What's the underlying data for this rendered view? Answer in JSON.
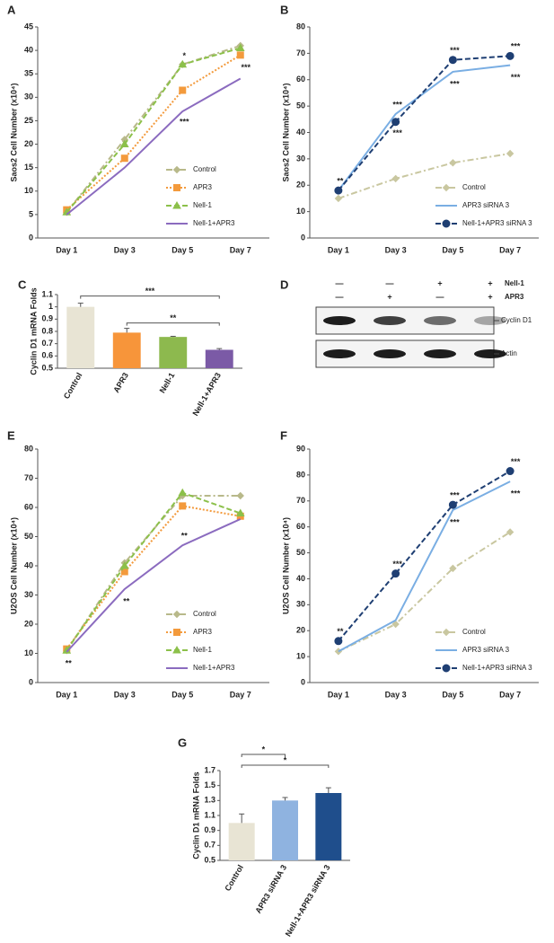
{
  "chart_data": [
    {
      "type": "line",
      "panel": "A",
      "y_label": "Saos2 Cell Number (x10⁴)",
      "categories": [
        "Day 1",
        "Day 3",
        "Day 5",
        "Day 7"
      ],
      "ylim": [
        0,
        45
      ],
      "yticks": [
        0,
        5,
        10,
        15,
        20,
        25,
        30,
        35,
        40,
        45
      ],
      "legend": "lower right",
      "series": [
        {
          "name": "Control",
          "color": "#b8b98a",
          "style": "dashdot",
          "marker": "diamond",
          "values": [
            5.5,
            21,
            37,
            41
          ]
        },
        {
          "name": "APR3",
          "color": "#f39a3c",
          "style": "dotted",
          "marker": "square",
          "values": [
            6,
            17,
            31.5,
            39
          ]
        },
        {
          "name": "Nell-1",
          "color": "#8cc04a",
          "style": "dashed",
          "marker": "triangle",
          "values": [
            5.5,
            20,
            37,
            40.5
          ]
        },
        {
          "name": "Nell-1+APR3",
          "color": "#8b6bbf",
          "style": "solid",
          "marker": "none",
          "values": [
            5,
            15,
            27,
            34
          ]
        }
      ],
      "annotations": [
        {
          "text": "*",
          "category": "Day 5"
        },
        {
          "text": "***",
          "category": "Day 7"
        },
        {
          "text": "***",
          "category": "Day 5"
        }
      ]
    },
    {
      "type": "line",
      "panel": "B",
      "y_label": "Saos2 Cell Number (x10⁴)",
      "categories": [
        "Day 1",
        "Day 3",
        "Day 5",
        "Day 7"
      ],
      "ylim": [
        0,
        80
      ],
      "yticks": [
        0,
        10,
        20,
        30,
        40,
        50,
        60,
        70,
        80
      ],
      "legend": "lower right",
      "series": [
        {
          "name": "Control",
          "color": "#c9c7a0",
          "style": "dashdot",
          "marker": "diamond",
          "values": [
            15,
            22.5,
            28.5,
            32
          ]
        },
        {
          "name": "APR3 siRNA 3",
          "color": "#7aaee3",
          "style": "solid",
          "marker": "none",
          "values": [
            18,
            47,
            63,
            65.5
          ]
        },
        {
          "name": "Nell-1+APR3 siRNA 3",
          "color": "#1f3f73",
          "style": "dashed",
          "marker": "circle",
          "values": [
            18,
            44,
            67.5,
            69
          ]
        }
      ],
      "annotations": [
        {
          "text": "**",
          "category": "Day 1"
        },
        {
          "text": "***",
          "category": "Day 3"
        },
        {
          "text": "***",
          "category": "Day 3"
        },
        {
          "text": "***",
          "category": "Day 5"
        },
        {
          "text": "***",
          "category": "Day 5"
        },
        {
          "text": "***",
          "category": "Day 7"
        },
        {
          "text": "***",
          "category": "Day 7"
        }
      ]
    },
    {
      "type": "bar",
      "panel": "C",
      "y_label": "Cyclin D1 mRNA Folds",
      "categories": [
        "Control",
        "APR3",
        "Nell-1",
        "Nell-1+APR3"
      ],
      "ylim": [
        0.5,
        1.1
      ],
      "yticks": [
        0.5,
        0.6,
        0.7,
        0.8,
        0.9,
        1,
        1.1
      ],
      "values": [
        1.0,
        0.79,
        0.755,
        0.65
      ],
      "errors": [
        0.03,
        0.035,
        0.005,
        0.01
      ],
      "colors": [
        "#e8e4d4",
        "#f7953a",
        "#8db94e",
        "#7b5aa6"
      ],
      "comparisons": [
        {
          "from": "Control",
          "to": "Nell-1+APR3",
          "label": "***"
        },
        {
          "from": "APR3",
          "to": "Nell-1+APR3",
          "label": "**"
        }
      ]
    },
    {
      "type": "line",
      "panel": "E",
      "y_label": "U2OS Cell Number (x10⁴)",
      "categories": [
        "Day 1",
        "Day 3",
        "Day 5",
        "Day 7"
      ],
      "ylim": [
        0,
        80
      ],
      "yticks": [
        0,
        10,
        20,
        30,
        40,
        50,
        60,
        70,
        80
      ],
      "legend": "lower right",
      "series": [
        {
          "name": "Control",
          "color": "#b8b98a",
          "style": "dashdot",
          "marker": "diamond",
          "values": [
            11,
            41,
            64,
            64
          ]
        },
        {
          "name": "APR3",
          "color": "#f39a3c",
          "style": "dotted",
          "marker": "square",
          "values": [
            11.5,
            38,
            60.5,
            57
          ]
        },
        {
          "name": "Nell-1",
          "color": "#8cc04a",
          "style": "dashed",
          "marker": "triangle",
          "values": [
            11,
            40,
            65,
            58
          ]
        },
        {
          "name": "Nell-1+APR3",
          "color": "#8b6bbf",
          "style": "solid",
          "marker": "none",
          "values": [
            10.5,
            32,
            47,
            56
          ]
        }
      ],
      "annotations": [
        {
          "text": "**",
          "category": "Day 1"
        },
        {
          "text": "**",
          "category": "Day 3"
        },
        {
          "text": "**",
          "category": "Day 5"
        }
      ]
    },
    {
      "type": "line",
      "panel": "F",
      "y_label": "U2OS Cell Number (x10⁴)",
      "categories": [
        "Day 1",
        "Day 3",
        "Day 5",
        "Day 7"
      ],
      "ylim": [
        0,
        90
      ],
      "yticks": [
        0,
        10,
        20,
        30,
        40,
        50,
        60,
        70,
        80,
        90
      ],
      "legend": "lower right",
      "series": [
        {
          "name": "Control",
          "color": "#c9c7a0",
          "style": "dashdot",
          "marker": "diamond",
          "values": [
            12,
            22.5,
            44,
            58
          ]
        },
        {
          "name": "APR3 siRNA 3",
          "color": "#7aaee3",
          "style": "solid",
          "marker": "none",
          "values": [
            12,
            24,
            66.5,
            77.5
          ]
        },
        {
          "name": "Nell-1+APR3 siRNA 3",
          "color": "#1f3f73",
          "style": "dashed",
          "marker": "circle",
          "values": [
            16,
            42,
            68.5,
            81.5
          ]
        }
      ],
      "annotations": [
        {
          "text": "**",
          "category": "Day 1"
        },
        {
          "text": "***",
          "category": "Day 3"
        },
        {
          "text": "***",
          "category": "Day 5"
        },
        {
          "text": "***",
          "category": "Day 5"
        },
        {
          "text": "***",
          "category": "Day 7"
        },
        {
          "text": "***",
          "category": "Day 7"
        }
      ]
    },
    {
      "type": "bar",
      "panel": "G",
      "y_label": "Cyclin D1 mRNA Folds",
      "categories": [
        "Control",
        "APR3 siRNA 3",
        "Nell-1+APR3 siRNA 3"
      ],
      "ylim": [
        0.5,
        1.7
      ],
      "yticks": [
        0.5,
        0.7,
        0.9,
        1.1,
        1.3,
        1.5,
        1.7
      ],
      "values": [
        1.0,
        1.3,
        1.4
      ],
      "errors": [
        0.12,
        0.04,
        0.07
      ],
      "colors": [
        "#e8e4d4",
        "#8fb3e0",
        "#1f4e8c"
      ],
      "comparisons": [
        {
          "from": "Control",
          "to": "APR3 siRNA 3",
          "label": "*"
        },
        {
          "from": "Control",
          "to": "Nell-1+APR3 siRNA 3",
          "label": "*"
        }
      ]
    }
  ],
  "blot": {
    "panel": "D",
    "rows": [
      {
        "label": "Nell-1",
        "signs": [
          "—",
          "—",
          "+",
          "+"
        ]
      },
      {
        "label": "APR3",
        "signs": [
          "—",
          "+",
          "—",
          "+"
        ]
      }
    ],
    "bands": [
      "Cyclin D1",
      "Actin"
    ]
  }
}
